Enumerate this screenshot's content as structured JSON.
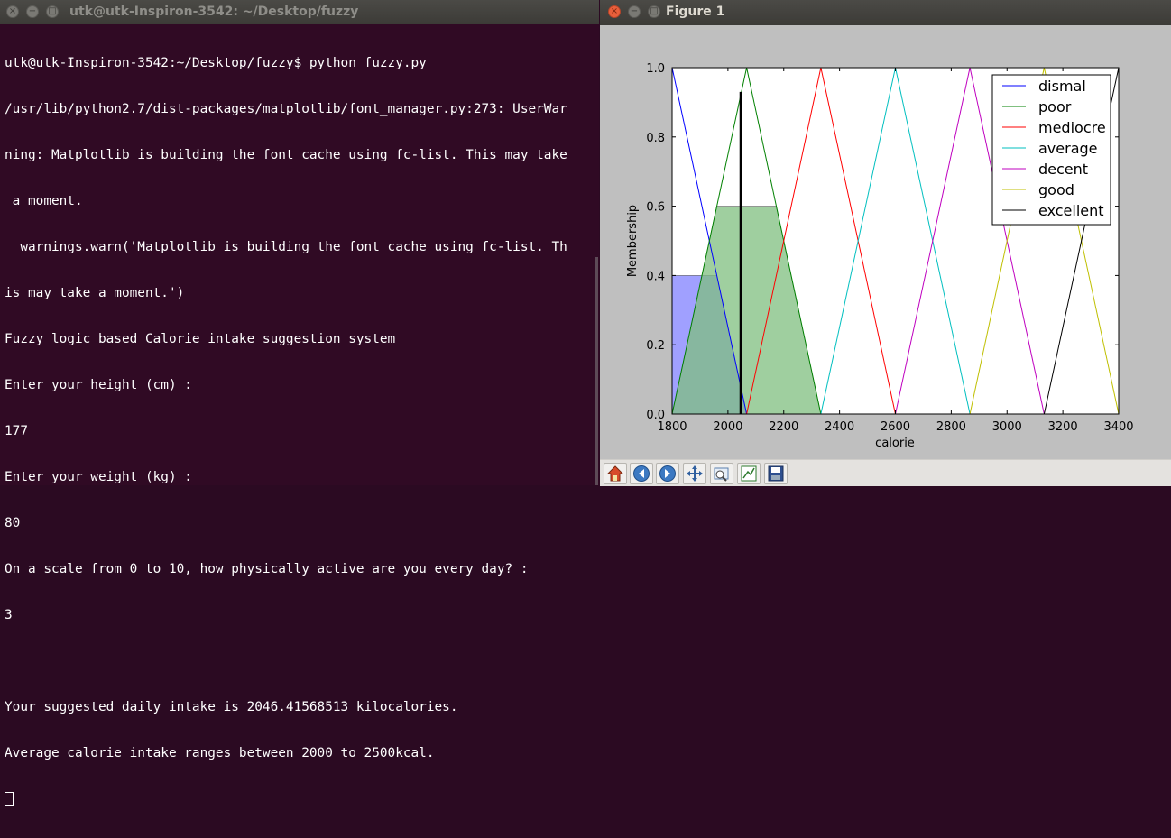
{
  "terminal": {
    "title": "utk@utk-Inspiron-3542: ~/Desktop/fuzzy",
    "lines": [
      "utk@utk-Inspiron-3542:~/Desktop/fuzzy$ python fuzzy.py",
      "/usr/lib/python2.7/dist-packages/matplotlib/font_manager.py:273: UserWar",
      "ning: Matplotlib is building the font cache using fc-list. This may take",
      " a moment.",
      "  warnings.warn('Matplotlib is building the font cache using fc-list. Th",
      "is may take a moment.')",
      "Fuzzy logic based Calorie intake suggestion system",
      "Enter your height (cm) :",
      "177",
      "Enter your weight (kg) :",
      "80",
      "On a scale from 0 to 10, how physically active are you every day? :",
      "3",
      "",
      "Your suggested daily intake is 2046.41568513 kilocalories.",
      "Average calorie intake ranges between 2000 to 2500kcal."
    ]
  },
  "figure": {
    "title": "Figure 1",
    "toolbar": {
      "home": "home-icon",
      "back": "back-arrow-icon",
      "forward": "forward-arrow-icon",
      "pan": "pan-move-icon",
      "zoom": "zoom-rect-icon",
      "subplots": "configure-subplots-icon",
      "save": "save-floppy-icon"
    }
  },
  "chart_data": {
    "type": "line",
    "xlabel": "calorie",
    "ylabel": "Membership",
    "xlim": [
      1800,
      3400
    ],
    "ylim": [
      0,
      1.0
    ],
    "xticks": [
      "1800",
      "2000",
      "2200",
      "2400",
      "2600",
      "2800",
      "3000",
      "3200",
      "3400"
    ],
    "yticks": [
      "0.0",
      "0.2",
      "0.4",
      "0.6",
      "0.8",
      "1.0"
    ],
    "legend_position": "top-right",
    "series": [
      {
        "name": "dismal",
        "color": "#0000ff",
        "x": [
          1800,
          1800,
          2067
        ],
        "y": [
          0,
          1,
          0
        ]
      },
      {
        "name": "poor",
        "color": "#008000",
        "x": [
          1800,
          2067,
          2333
        ],
        "y": [
          0,
          1,
          0
        ]
      },
      {
        "name": "mediocre",
        "color": "#ff0000",
        "x": [
          2067,
          2333,
          2600
        ],
        "y": [
          0,
          1,
          0
        ]
      },
      {
        "name": "average",
        "color": "#00bfbf",
        "x": [
          2333,
          2600,
          2867
        ],
        "y": [
          0,
          1,
          0
        ]
      },
      {
        "name": "decent",
        "color": "#bf00bf",
        "x": [
          2600,
          2867,
          3133
        ],
        "y": [
          0,
          1,
          0
        ]
      },
      {
        "name": "good",
        "color": "#bfbf00",
        "x": [
          2867,
          3133,
          3400
        ],
        "y": [
          0,
          1,
          0
        ]
      },
      {
        "name": "excellent",
        "color": "#000000",
        "x": [
          3133,
          3400,
          3400
        ],
        "y": [
          0,
          1,
          0
        ]
      }
    ],
    "fills": [
      {
        "name": "dismal-activation",
        "color": "#8080ff",
        "x": [
          1800,
          1800,
          1960,
          2067
        ],
        "y": [
          0,
          0.4,
          0.4,
          0
        ]
      },
      {
        "name": "poor-activation",
        "color": "#7fbf7f",
        "x": [
          1800,
          1960,
          2173,
          2333
        ],
        "y": [
          0,
          0.6,
          0.6,
          0
        ]
      }
    ],
    "defuzzified": {
      "x": 2046.4,
      "y": 0.93
    }
  }
}
